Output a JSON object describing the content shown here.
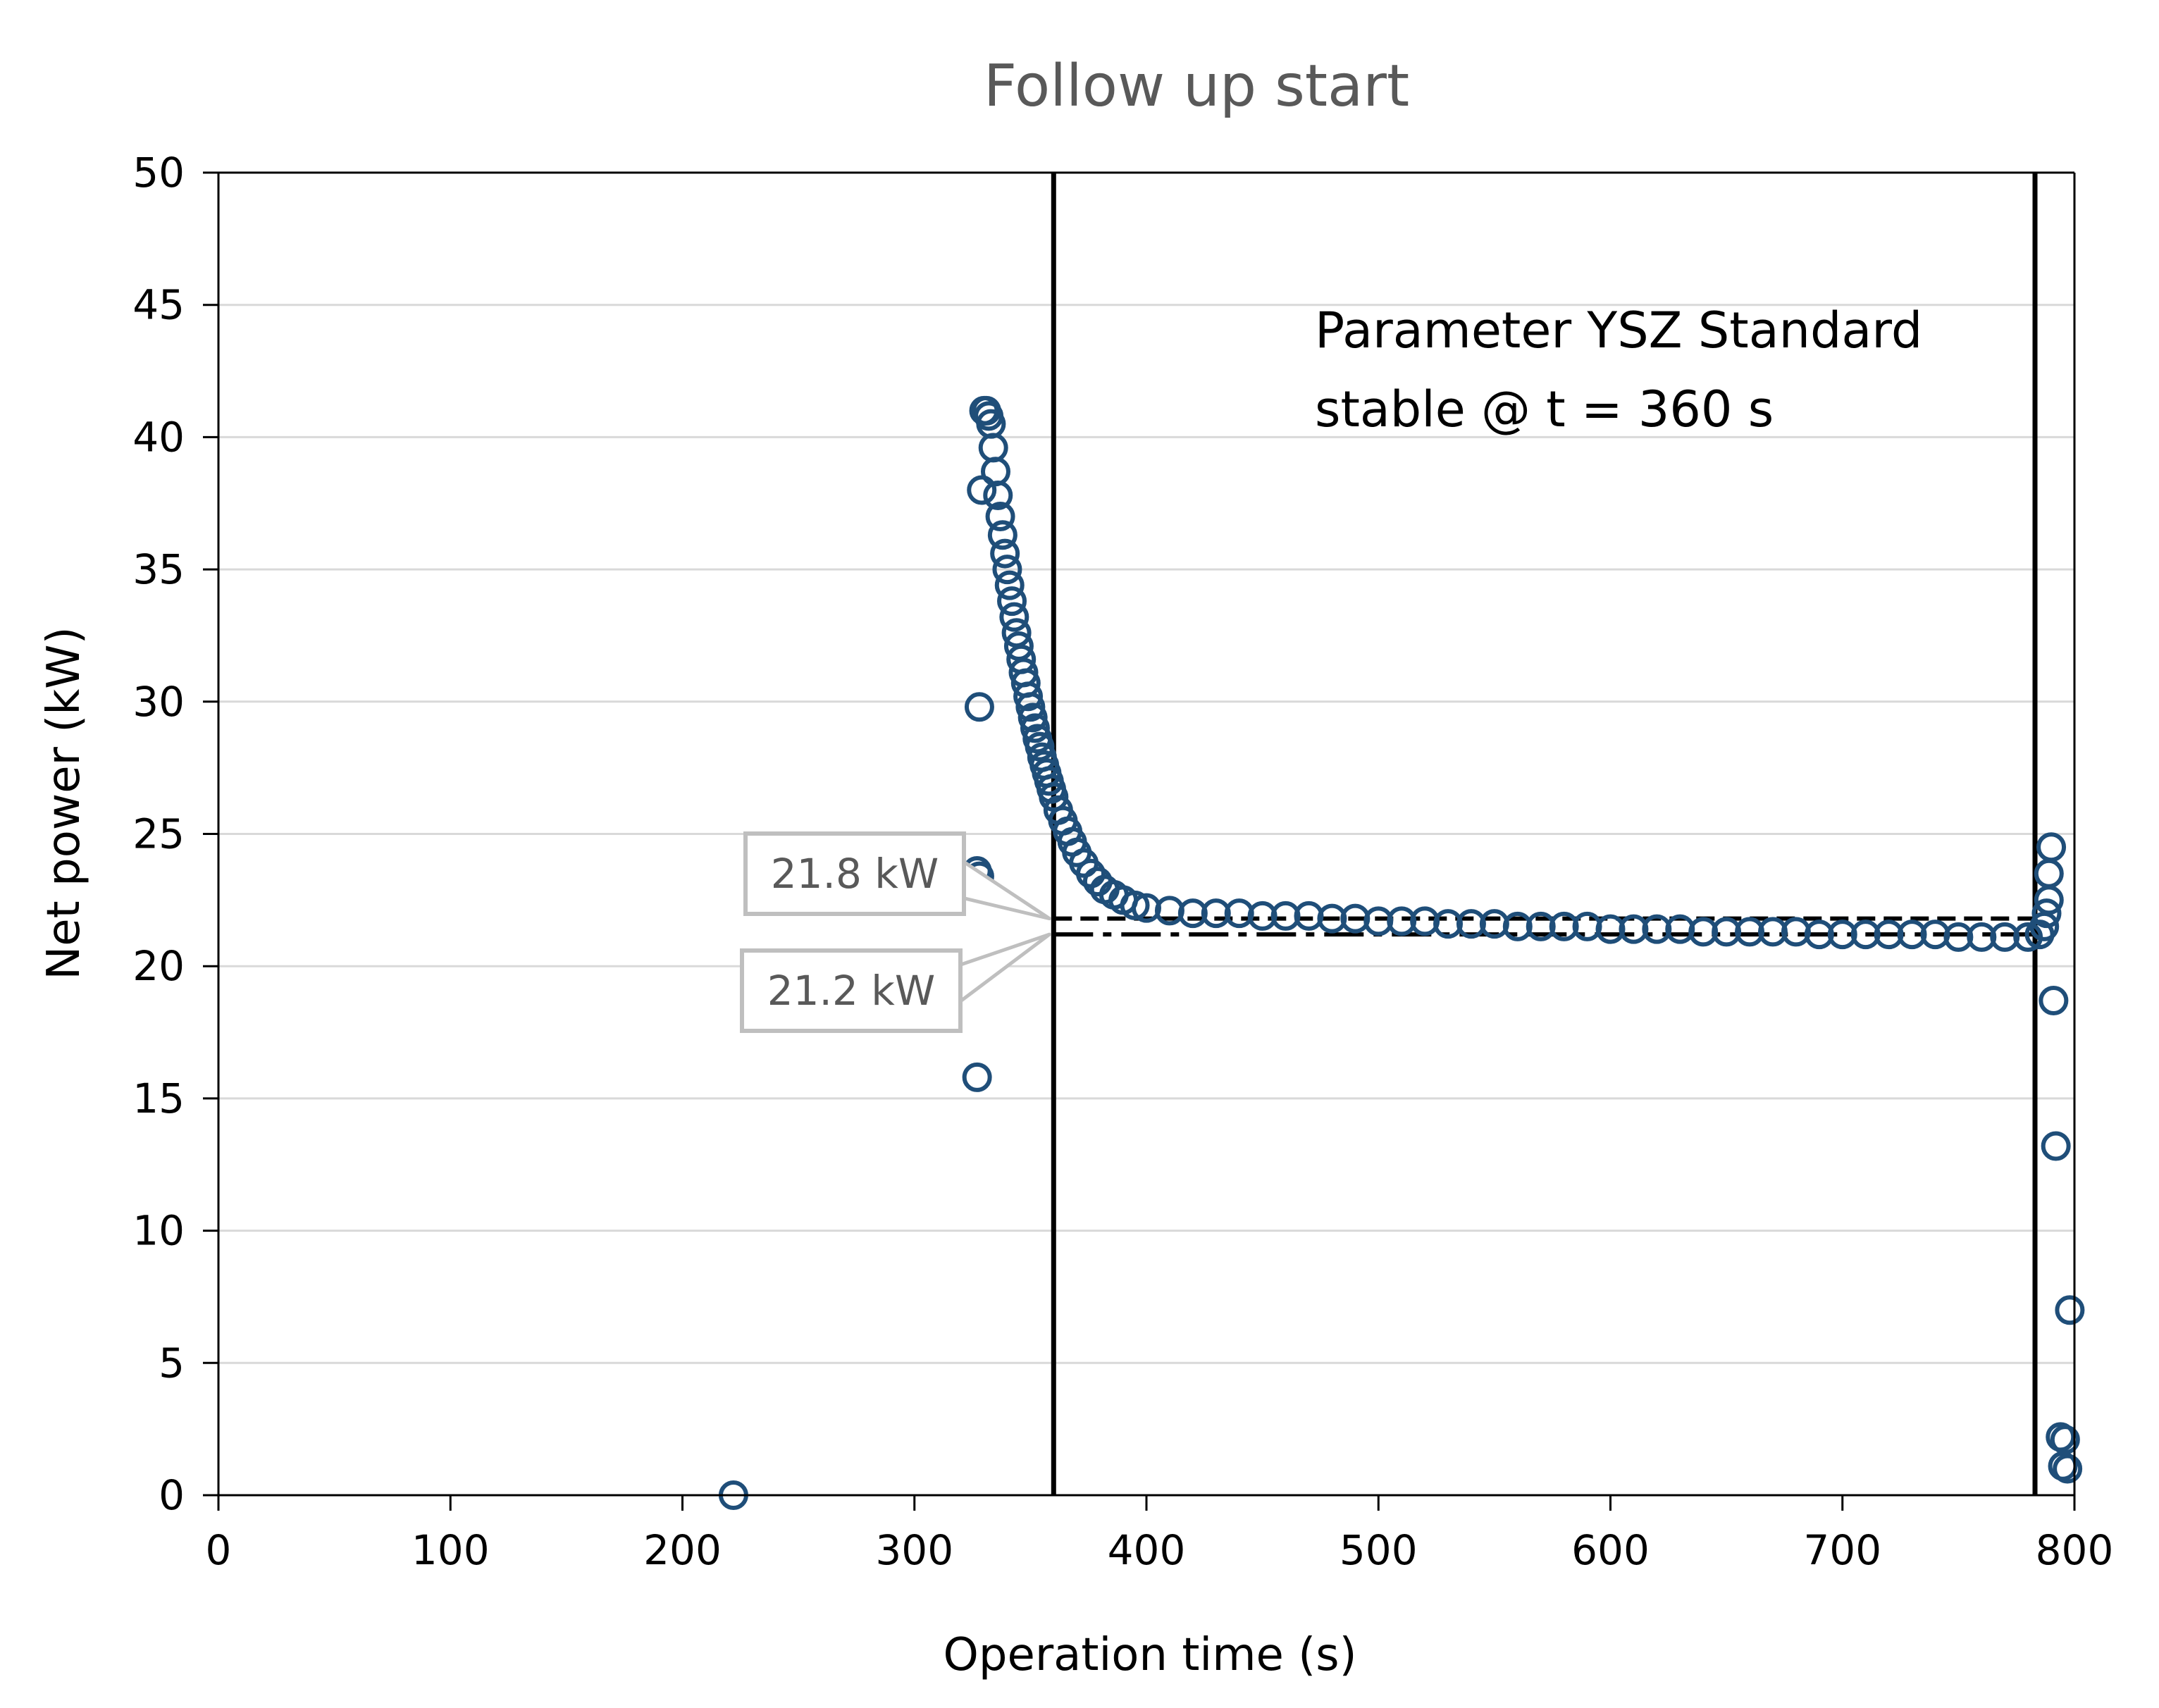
{
  "chart_data": {
    "type": "scatter",
    "title": "Follow up start",
    "xlabel": "Operation time (s)",
    "ylabel": "Net power (kW)",
    "xlim": [
      0,
      800
    ],
    "ylim": [
      0,
      50
    ],
    "xticks": [
      0,
      100,
      200,
      300,
      400,
      500,
      600,
      700,
      800
    ],
    "yticks": [
      0,
      5,
      10,
      15,
      20,
      25,
      30,
      35,
      40,
      45,
      50
    ],
    "grid": "horizontal",
    "legend": "none",
    "marker": "open-circle",
    "marker_color": "#1F4E79",
    "annotation": {
      "line1": "Parameter YSZ Standard",
      "line2": "stable @ t = 360 s"
    },
    "reference_lines": {
      "vertical": [
        360,
        783
      ],
      "horizontal": [
        {
          "value": 21.8,
          "style": "dashed",
          "x_from": 360,
          "x_to": 785
        },
        {
          "value": 21.2,
          "style": "dash-dot",
          "x_from": 360,
          "x_to": 785
        }
      ]
    },
    "callouts": [
      {
        "label": "21.8 kW",
        "value": 21.8
      },
      {
        "label": "21.2 kW",
        "value": 21.2
      }
    ],
    "series": [
      {
        "points": [
          [
            222,
            0.0
          ],
          [
            327,
            15.8
          ],
          [
            327,
            23.6
          ],
          [
            328,
            29.8
          ],
          [
            328,
            23.4
          ],
          [
            329,
            38.0
          ],
          [
            330,
            41.0
          ],
          [
            331,
            41.0
          ],
          [
            332,
            40.8
          ],
          [
            333,
            40.5
          ],
          [
            334,
            39.6
          ],
          [
            335,
            38.7
          ],
          [
            336,
            37.8
          ],
          [
            337,
            37.0
          ],
          [
            338,
            36.3
          ],
          [
            339,
            35.6
          ],
          [
            340,
            35.0
          ],
          [
            341,
            34.4
          ],
          [
            342,
            33.8
          ],
          [
            343,
            33.2
          ],
          [
            344,
            32.6
          ],
          [
            345,
            32.1
          ],
          [
            346,
            31.6
          ],
          [
            347,
            31.1
          ],
          [
            348,
            30.7
          ],
          [
            349,
            30.2
          ],
          [
            350,
            29.8
          ],
          [
            351,
            29.4
          ],
          [
            352,
            29.0
          ],
          [
            353,
            28.6
          ],
          [
            354,
            28.3
          ],
          [
            355,
            27.9
          ],
          [
            356,
            27.6
          ],
          [
            357,
            27.3
          ],
          [
            358,
            27.0
          ],
          [
            359,
            26.7
          ],
          [
            360,
            26.4
          ],
          [
            362,
            25.9
          ],
          [
            364,
            25.5
          ],
          [
            366,
            25.1
          ],
          [
            368,
            24.7
          ],
          [
            370,
            24.3
          ],
          [
            373,
            23.9
          ],
          [
            376,
            23.5
          ],
          [
            379,
            23.2
          ],
          [
            382,
            22.9
          ],
          [
            386,
            22.7
          ],
          [
            390,
            22.5
          ],
          [
            395,
            22.3
          ],
          [
            400,
            22.2
          ],
          [
            410,
            22.1
          ],
          [
            420,
            22.0
          ],
          [
            430,
            22.0
          ],
          [
            440,
            22.0
          ],
          [
            450,
            21.9
          ],
          [
            460,
            21.9
          ],
          [
            470,
            21.9
          ],
          [
            480,
            21.8
          ],
          [
            490,
            21.8
          ],
          [
            500,
            21.7
          ],
          [
            510,
            21.7
          ],
          [
            520,
            21.7
          ],
          [
            530,
            21.6
          ],
          [
            540,
            21.6
          ],
          [
            550,
            21.6
          ],
          [
            560,
            21.5
          ],
          [
            570,
            21.5
          ],
          [
            580,
            21.5
          ],
          [
            590,
            21.5
          ],
          [
            600,
            21.4
          ],
          [
            610,
            21.4
          ],
          [
            620,
            21.4
          ],
          [
            630,
            21.4
          ],
          [
            640,
            21.3
          ],
          [
            650,
            21.3
          ],
          [
            660,
            21.3
          ],
          [
            670,
            21.3
          ],
          [
            680,
            21.3
          ],
          [
            690,
            21.2
          ],
          [
            700,
            21.2
          ],
          [
            710,
            21.2
          ],
          [
            720,
            21.2
          ],
          [
            730,
            21.2
          ],
          [
            740,
            21.2
          ],
          [
            750,
            21.1
          ],
          [
            760,
            21.1
          ],
          [
            770,
            21.1
          ],
          [
            780,
            21.1
          ],
          [
            785,
            21.2
          ],
          [
            787,
            21.5
          ],
          [
            788,
            22.0
          ],
          [
            789,
            22.5
          ],
          [
            789,
            23.5
          ],
          [
            790,
            24.5
          ],
          [
            791,
            18.7
          ],
          [
            792,
            13.2
          ],
          [
            794,
            2.2
          ],
          [
            795,
            1.1
          ],
          [
            796,
            2.1
          ],
          [
            797,
            1.0
          ],
          [
            798,
            7.0
          ]
        ]
      }
    ]
  }
}
